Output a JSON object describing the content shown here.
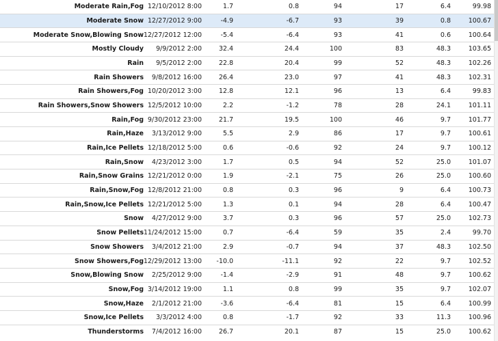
{
  "table": {
    "rows": [
      {
        "weather": "Moderate Rain,Fog",
        "datetime": "12/10/2012 8:00",
        "temp": "1.7",
        "dew_point": "0.8",
        "humidity": "94",
        "wind_speed": "17",
        "visibility": "6.4",
        "pressure": "99.98",
        "selected": false
      },
      {
        "weather": "Moderate Snow",
        "datetime": "12/27/2012 9:00",
        "temp": "-4.9",
        "dew_point": "-6.7",
        "humidity": "93",
        "wind_speed": "39",
        "visibility": "0.8",
        "pressure": "100.67",
        "selected": true
      },
      {
        "weather": "Moderate Snow,Blowing Snow",
        "datetime": "12/27/2012 12:00",
        "temp": "-5.4",
        "dew_point": "-6.4",
        "humidity": "93",
        "wind_speed": "41",
        "visibility": "0.6",
        "pressure": "100.64",
        "selected": false
      },
      {
        "weather": "Mostly Cloudy",
        "datetime": "9/9/2012 2:00",
        "temp": "32.4",
        "dew_point": "24.4",
        "humidity": "100",
        "wind_speed": "83",
        "visibility": "48.3",
        "pressure": "103.65",
        "selected": false
      },
      {
        "weather": "Rain",
        "datetime": "9/5/2012 2:00",
        "temp": "22.8",
        "dew_point": "20.4",
        "humidity": "99",
        "wind_speed": "52",
        "visibility": "48.3",
        "pressure": "102.26",
        "selected": false
      },
      {
        "weather": "Rain Showers",
        "datetime": "9/8/2012 16:00",
        "temp": "26.4",
        "dew_point": "23.0",
        "humidity": "97",
        "wind_speed": "41",
        "visibility": "48.3",
        "pressure": "102.31",
        "selected": false
      },
      {
        "weather": "Rain Showers,Fog",
        "datetime": "10/20/2012 3:00",
        "temp": "12.8",
        "dew_point": "12.1",
        "humidity": "96",
        "wind_speed": "13",
        "visibility": "6.4",
        "pressure": "99.83",
        "selected": false
      },
      {
        "weather": "Rain Showers,Snow Showers",
        "datetime": "12/5/2012 10:00",
        "temp": "2.2",
        "dew_point": "-1.2",
        "humidity": "78",
        "wind_speed": "28",
        "visibility": "24.1",
        "pressure": "101.11",
        "selected": false
      },
      {
        "weather": "Rain,Fog",
        "datetime": "9/30/2012 23:00",
        "temp": "21.7",
        "dew_point": "19.5",
        "humidity": "100",
        "wind_speed": "46",
        "visibility": "9.7",
        "pressure": "101.77",
        "selected": false
      },
      {
        "weather": "Rain,Haze",
        "datetime": "3/13/2012 9:00",
        "temp": "5.5",
        "dew_point": "2.9",
        "humidity": "86",
        "wind_speed": "17",
        "visibility": "9.7",
        "pressure": "100.61",
        "selected": false
      },
      {
        "weather": "Rain,Ice Pellets",
        "datetime": "12/18/2012 5:00",
        "temp": "0.6",
        "dew_point": "-0.6",
        "humidity": "92",
        "wind_speed": "24",
        "visibility": "9.7",
        "pressure": "100.12",
        "selected": false
      },
      {
        "weather": "Rain,Snow",
        "datetime": "4/23/2012 3:00",
        "temp": "1.7",
        "dew_point": "0.5",
        "humidity": "94",
        "wind_speed": "52",
        "visibility": "25.0",
        "pressure": "101.07",
        "selected": false
      },
      {
        "weather": "Rain,Snow Grains",
        "datetime": "12/21/2012 0:00",
        "temp": "1.9",
        "dew_point": "-2.1",
        "humidity": "75",
        "wind_speed": "26",
        "visibility": "25.0",
        "pressure": "100.60",
        "selected": false
      },
      {
        "weather": "Rain,Snow,Fog",
        "datetime": "12/8/2012 21:00",
        "temp": "0.8",
        "dew_point": "0.3",
        "humidity": "96",
        "wind_speed": "9",
        "visibility": "6.4",
        "pressure": "100.73",
        "selected": false
      },
      {
        "weather": "Rain,Snow,Ice Pellets",
        "datetime": "12/21/2012 5:00",
        "temp": "1.3",
        "dew_point": "0.1",
        "humidity": "94",
        "wind_speed": "28",
        "visibility": "6.4",
        "pressure": "100.47",
        "selected": false
      },
      {
        "weather": "Snow",
        "datetime": "4/27/2012 9:00",
        "temp": "3.7",
        "dew_point": "0.3",
        "humidity": "96",
        "wind_speed": "57",
        "visibility": "25.0",
        "pressure": "102.73",
        "selected": false
      },
      {
        "weather": "Snow Pellets",
        "datetime": "11/24/2012 15:00",
        "temp": "0.7",
        "dew_point": "-6.4",
        "humidity": "59",
        "wind_speed": "35",
        "visibility": "2.4",
        "pressure": "99.70",
        "selected": false
      },
      {
        "weather": "Snow Showers",
        "datetime": "3/4/2012 21:00",
        "temp": "2.9",
        "dew_point": "-0.7",
        "humidity": "94",
        "wind_speed": "37",
        "visibility": "48.3",
        "pressure": "102.50",
        "selected": false
      },
      {
        "weather": "Snow Showers,Fog",
        "datetime": "12/29/2012 13:00",
        "temp": "-10.0",
        "dew_point": "-11.1",
        "humidity": "92",
        "wind_speed": "22",
        "visibility": "9.7",
        "pressure": "102.52",
        "selected": false
      },
      {
        "weather": "Snow,Blowing Snow",
        "datetime": "2/25/2012 9:00",
        "temp": "-1.4",
        "dew_point": "-2.9",
        "humidity": "91",
        "wind_speed": "48",
        "visibility": "9.7",
        "pressure": "100.62",
        "selected": false
      },
      {
        "weather": "Snow,Fog",
        "datetime": "3/14/2012 19:00",
        "temp": "1.1",
        "dew_point": "0.8",
        "humidity": "99",
        "wind_speed": "35",
        "visibility": "9.7",
        "pressure": "102.07",
        "selected": false
      },
      {
        "weather": "Snow,Haze",
        "datetime": "2/1/2012 21:00",
        "temp": "-3.6",
        "dew_point": "-6.4",
        "humidity": "81",
        "wind_speed": "15",
        "visibility": "6.4",
        "pressure": "100.99",
        "selected": false
      },
      {
        "weather": "Snow,Ice Pellets",
        "datetime": "3/3/2012 4:00",
        "temp": "0.8",
        "dew_point": "-1.7",
        "humidity": "92",
        "wind_speed": "33",
        "visibility": "11.3",
        "pressure": "100.96",
        "selected": false
      },
      {
        "weather": "Thunderstorms",
        "datetime": "7/4/2012 16:00",
        "temp": "26.7",
        "dew_point": "20.1",
        "humidity": "87",
        "wind_speed": "15",
        "visibility": "25.0",
        "pressure": "100.62",
        "selected": false
      }
    ]
  },
  "colors": {
    "selected_row": "#ddeaf8",
    "grid_line": "#d8d8d8",
    "text": "#1a1a1a"
  }
}
